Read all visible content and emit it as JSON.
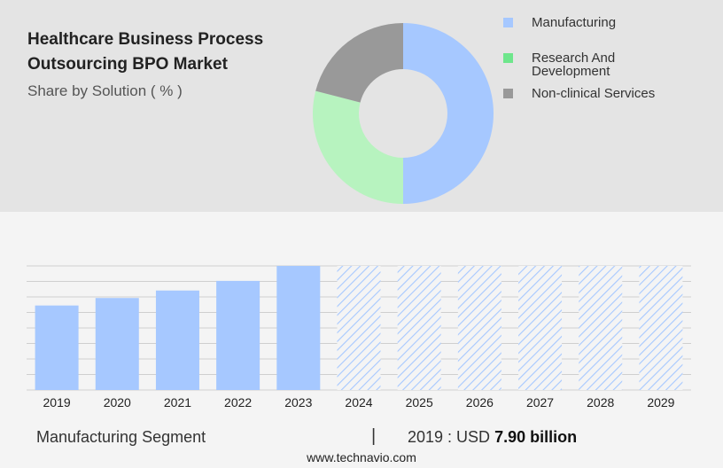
{
  "header": {
    "title_line1": "Healthcare Business Process",
    "title_line2": "Outsourcing BPO Market",
    "subtitle": "Share by Solution ( % )"
  },
  "legend": {
    "items": [
      {
        "label_line1": "Manufacturing",
        "label_line2": "",
        "color": "#a6c8ff"
      },
      {
        "label_line1": "Research And",
        "label_line2": "Development",
        "color": "#6ee68c"
      },
      {
        "label_line1": "Non-clinical Services",
        "label_line2": "",
        "color": "#999999"
      }
    ]
  },
  "chart_data": [
    {
      "type": "pie",
      "title": "Share by Solution ( % )",
      "donut": true,
      "labels": [
        "Manufacturing",
        "Research And Development",
        "Non-clinical Services"
      ],
      "values": [
        50,
        29,
        21
      ],
      "colors": [
        "#a6c8ff",
        "#b7f3bf",
        "#999999"
      ]
    },
    {
      "type": "bar",
      "categories": [
        "2019",
        "2020",
        "2021",
        "2022",
        "2023",
        "2024",
        "2025",
        "2026",
        "2027",
        "2028",
        "2029"
      ],
      "values": [
        7.9,
        8.6,
        9.3,
        10.2,
        11.6,
        null,
        null,
        null,
        null,
        null,
        null
      ],
      "forecast_categories": [
        "2024",
        "2025",
        "2026",
        "2027",
        "2028",
        "2029"
      ],
      "ylim": [
        0,
        11.6
      ],
      "grid": true,
      "bar_color": "#a6c8ff",
      "forecast_style": "hatched"
    }
  ],
  "footer": {
    "segment": "Manufacturing Segment",
    "separator": "|",
    "year_label": "2019 : USD",
    "value": "7.90 billion",
    "website": "www.technavio.com"
  }
}
